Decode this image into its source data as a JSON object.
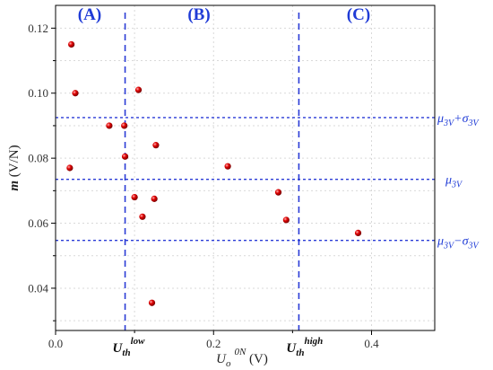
{
  "chart_data": {
    "type": "scatter",
    "xlabel": {
      "main": "U",
      "sub": "o",
      "sup": "0N",
      "unit": " (V)"
    },
    "ylabel": {
      "main": "m",
      "unit": " (V/N)"
    },
    "xlim": [
      0.0,
      0.48
    ],
    "ylim": [
      0.027,
      0.127
    ],
    "xticks": [
      0.0,
      0.2,
      0.4
    ],
    "xtick_labels": [
      "0.0",
      "0.2",
      "0.4"
    ],
    "yticks": [
      0.04,
      0.06,
      0.08,
      0.1,
      0.12
    ],
    "ytick_labels": [
      "0.04",
      "0.06",
      "0.08",
      "0.10",
      "0.12"
    ],
    "grid": true,
    "points": [
      {
        "x": 0.02,
        "y": 0.115
      },
      {
        "x": 0.025,
        "y": 0.1
      },
      {
        "x": 0.018,
        "y": 0.077
      },
      {
        "x": 0.068,
        "y": 0.09
      },
      {
        "x": 0.087,
        "y": 0.09
      },
      {
        "x": 0.088,
        "y": 0.0805
      },
      {
        "x": 0.105,
        "y": 0.101
      },
      {
        "x": 0.1,
        "y": 0.068
      },
      {
        "x": 0.11,
        "y": 0.062
      },
      {
        "x": 0.125,
        "y": 0.0675
      },
      {
        "x": 0.127,
        "y": 0.084
      },
      {
        "x": 0.122,
        "y": 0.0355
      },
      {
        "x": 0.218,
        "y": 0.0775
      },
      {
        "x": 0.282,
        "y": 0.0695
      },
      {
        "x": 0.292,
        "y": 0.061
      },
      {
        "x": 0.383,
        "y": 0.057
      }
    ],
    "point_color": "#e00000",
    "reference_lines_horizontal": [
      {
        "y": 0.0925,
        "label": {
          "base": "μ",
          "sub": "3V",
          "rest": "+σ",
          "sub2": "3V"
        }
      },
      {
        "y": 0.0735,
        "label": {
          "base": "μ",
          "sub": "3V",
          "rest": "",
          "sub2": ""
        }
      },
      {
        "y": 0.0547,
        "label": {
          "base": "μ",
          "sub": "3V",
          "rest": "−σ",
          "sub2": "3V"
        }
      }
    ],
    "reference_lines_vertical": [
      {
        "x": 0.088,
        "label": {
          "main": "U",
          "sub": "th",
          "sup": "low"
        }
      },
      {
        "x": 0.308,
        "label": {
          "main": "U",
          "sub": "th",
          "sup": "high"
        }
      }
    ],
    "regions": [
      "(A)",
      "(B)",
      "(C)"
    ],
    "ref_color": "#2a3bd6"
  }
}
